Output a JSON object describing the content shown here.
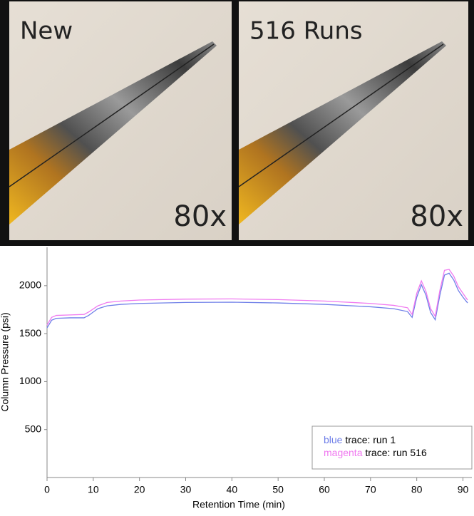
{
  "photos": [
    {
      "label": "New",
      "magnification": "80x"
    },
    {
      "label": "516 Runs",
      "magnification": "80x"
    }
  ],
  "chart_data": {
    "type": "line",
    "xlabel": "Retention Time (min)",
    "ylabel": "Column Pressure (psi)",
    "x": [
      0,
      1,
      2,
      5,
      8,
      9,
      11,
      13,
      16,
      20,
      30,
      40,
      50,
      60,
      70,
      75,
      78,
      79,
      80,
      81,
      82,
      83,
      84,
      85,
      86,
      87,
      88,
      89,
      90,
      91
    ],
    "series": [
      {
        "name": "blue trace: run 1",
        "color": "#6f7fe8",
        "values": [
          1560,
          1640,
          1660,
          1665,
          1665,
          1690,
          1760,
          1790,
          1805,
          1815,
          1825,
          1828,
          1820,
          1805,
          1780,
          1760,
          1730,
          1670,
          1880,
          2010,
          1900,
          1720,
          1645,
          1900,
          2110,
          2130,
          2060,
          1950,
          1880,
          1820
        ]
      },
      {
        "name": "magenta trace: run 516",
        "color": "#f07af0",
        "values": [
          1590,
          1670,
          1690,
          1695,
          1700,
          1725,
          1790,
          1825,
          1840,
          1850,
          1860,
          1862,
          1855,
          1840,
          1815,
          1795,
          1770,
          1700,
          1920,
          2050,
          1940,
          1760,
          1680,
          1950,
          2160,
          2170,
          2100,
          1990,
          1920,
          1850
        ]
      }
    ],
    "xlim": [
      0,
      91
    ],
    "ylim": [
      0,
      2400
    ],
    "xticks": [
      0,
      10,
      20,
      30,
      40,
      50,
      60,
      70,
      80,
      90
    ],
    "yticks": [
      500,
      1000,
      1500,
      2000
    ],
    "legend": "lower right"
  }
}
